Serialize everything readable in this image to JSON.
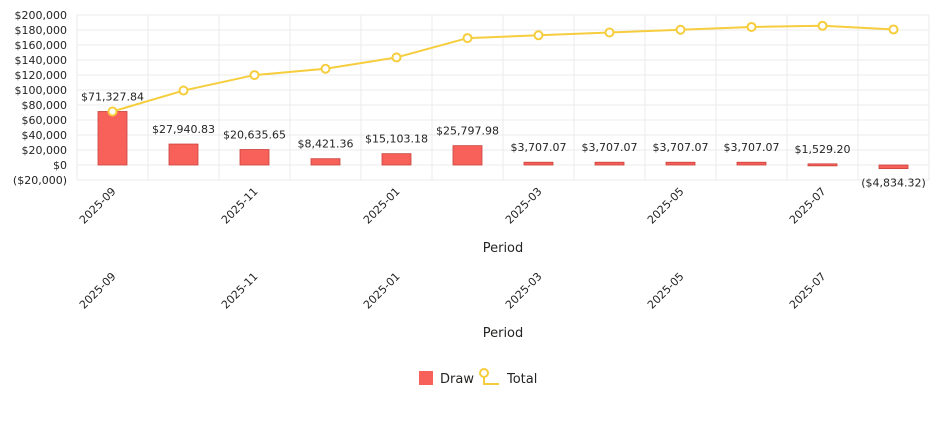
{
  "chart_data": {
    "type": "bar",
    "xlabel": "Period",
    "ylabel": "",
    "ylim": [
      -20000,
      200000
    ],
    "yticks": [
      -20000,
      0,
      20000,
      40000,
      60000,
      80000,
      100000,
      120000,
      140000,
      160000,
      180000,
      200000
    ],
    "ytick_labels": [
      "($20,000)",
      "$0",
      "$20,000",
      "$40,000",
      "$60,000",
      "$80,000",
      "$100,000",
      "$120,000",
      "$140,000",
      "$160,000",
      "$180,000",
      "$200,000"
    ],
    "categories": [
      "2025-09",
      "",
      "2025-11",
      "",
      "2025-01",
      "",
      "2025-03",
      "",
      "2025-05",
      "",
      "2025-07",
      ""
    ],
    "grid": true,
    "legend": "bottom-center",
    "series": [
      {
        "name": "Draw",
        "type": "bar",
        "color": "#F8615A",
        "values": [
          71327.84,
          27940.83,
          20635.65,
          8421.36,
          15103.18,
          25797.98,
          3707.07,
          3707.07,
          3707.07,
          3707.07,
          1529.2,
          -4834.32
        ],
        "labels": [
          "$71,327.84",
          "$27,940.83",
          "$20,635.65",
          "$8,421.36",
          "$15,103.18",
          "$25,797.98",
          "$3,707.07",
          "$3,707.07",
          "$3,707.07",
          "$3,707.07",
          "$1,529.20",
          "($4,834.32)"
        ]
      },
      {
        "name": "Total",
        "type": "line",
        "color": "#F5CD3D",
        "values": [
          71327.84,
          99268.67,
          119904.32,
          128325.68,
          143428.86,
          169226.84,
          172933.91,
          176640.98,
          180348.05,
          184055.12,
          185584.32,
          180750.0
        ]
      }
    ]
  },
  "second_axis": {
    "tick_labels": [
      "2025-09",
      "2025-11",
      "2025-01",
      "2025-03",
      "2025-05",
      "2025-07"
    ],
    "xlabel": "Period"
  }
}
